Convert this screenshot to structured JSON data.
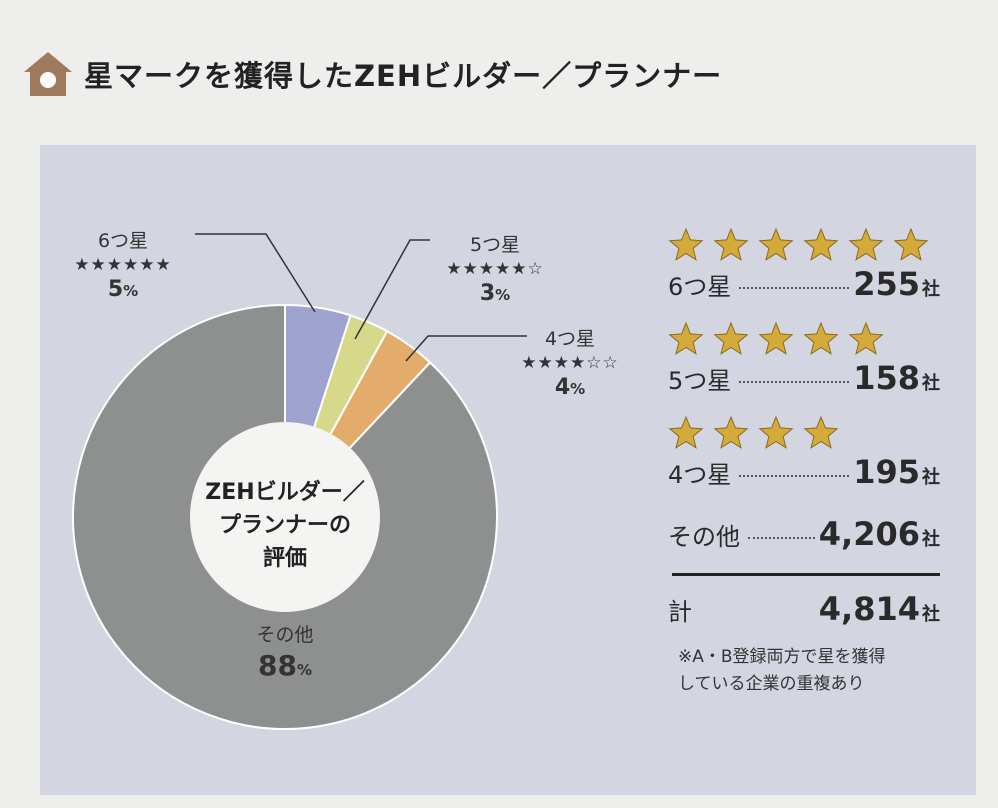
{
  "header": {
    "title": "星マークを獲得したZEHビルダー／プランナー"
  },
  "chart_data": {
    "type": "pie",
    "donut": true,
    "center_label": [
      "ZEHビルダー／",
      "プランナーの",
      "評価"
    ],
    "categories": [
      "6つ星",
      "5つ星",
      "4つ星",
      "その他"
    ],
    "values": [
      5,
      3,
      4,
      88
    ],
    "value_unit": "%",
    "star_marks": [
      "★★★★★★",
      "★★★★★☆",
      "★★★★☆☆",
      ""
    ],
    "colors": [
      "#9ea3d0",
      "#d6d98a",
      "#e4ac6a",
      "#8e9090"
    ]
  },
  "legend": {
    "items": [
      {
        "stars": 6,
        "label": "6つ星",
        "count": "255",
        "unit": "社"
      },
      {
        "stars": 5,
        "label": "5つ星",
        "count": "158",
        "unit": "社"
      },
      {
        "stars": 4,
        "label": "4つ星",
        "count": "195",
        "unit": "社"
      },
      {
        "stars": 0,
        "label": "その他",
        "count": "4,206",
        "unit": "社"
      }
    ],
    "total": {
      "label": "計",
      "count": "4,814",
      "unit": "社"
    },
    "note": [
      "※A・B登録両方で星を獲得",
      "している企業の重複あり"
    ]
  }
}
